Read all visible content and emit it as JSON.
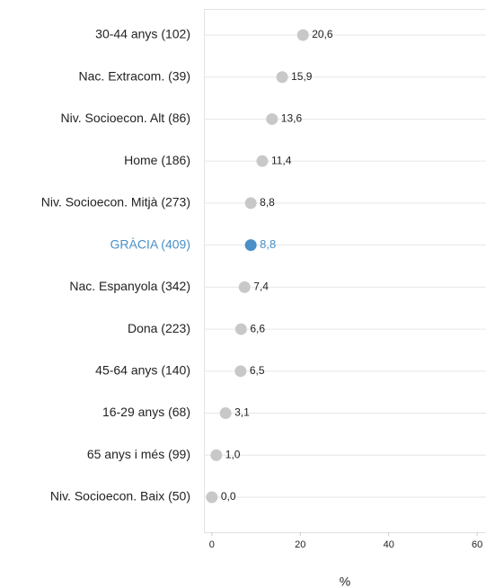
{
  "chart_data": {
    "type": "dot",
    "categories": [
      "30-44 anys (102)",
      "Nac. Extracom. (39)",
      "Niv. Socioecon. Alt (86)",
      "Home (186)",
      "Niv. Socioecon. Mitjà (273)",
      "GRÀCIA (409)",
      "Nac. Espanyola (342)",
      "Dona (223)",
      "45-64 anys (140)",
      "16-29 anys (68)",
      "65 anys i més (99)",
      "Niv. Socioecon. Baix (50)"
    ],
    "values": [
      20.6,
      15.9,
      13.6,
      11.4,
      8.8,
      8.8,
      7.4,
      6.6,
      6.5,
      3.1,
      1.0,
      0.0
    ],
    "value_labels": [
      "20,6",
      "15,9",
      "13,6",
      "11,4",
      "8,8",
      "8,8",
      "7,4",
      "6,6",
      "6,5",
      "3,1",
      "1,0",
      "0,0"
    ],
    "point_colors": [
      "#c8c8c8",
      "#c8c8c8",
      "#c8c8c8",
      "#c8c8c8",
      "#c8c8c8",
      "#4a8fc6",
      "#c8c8c8",
      "#c8c8c8",
      "#c8c8c8",
      "#c8c8c8",
      "#c8c8c8",
      "#c8c8c8"
    ],
    "xlabel": "%",
    "xlim": [
      -1.8,
      62
    ],
    "xticks": [
      0,
      20,
      40,
      60
    ],
    "grid": true
  }
}
